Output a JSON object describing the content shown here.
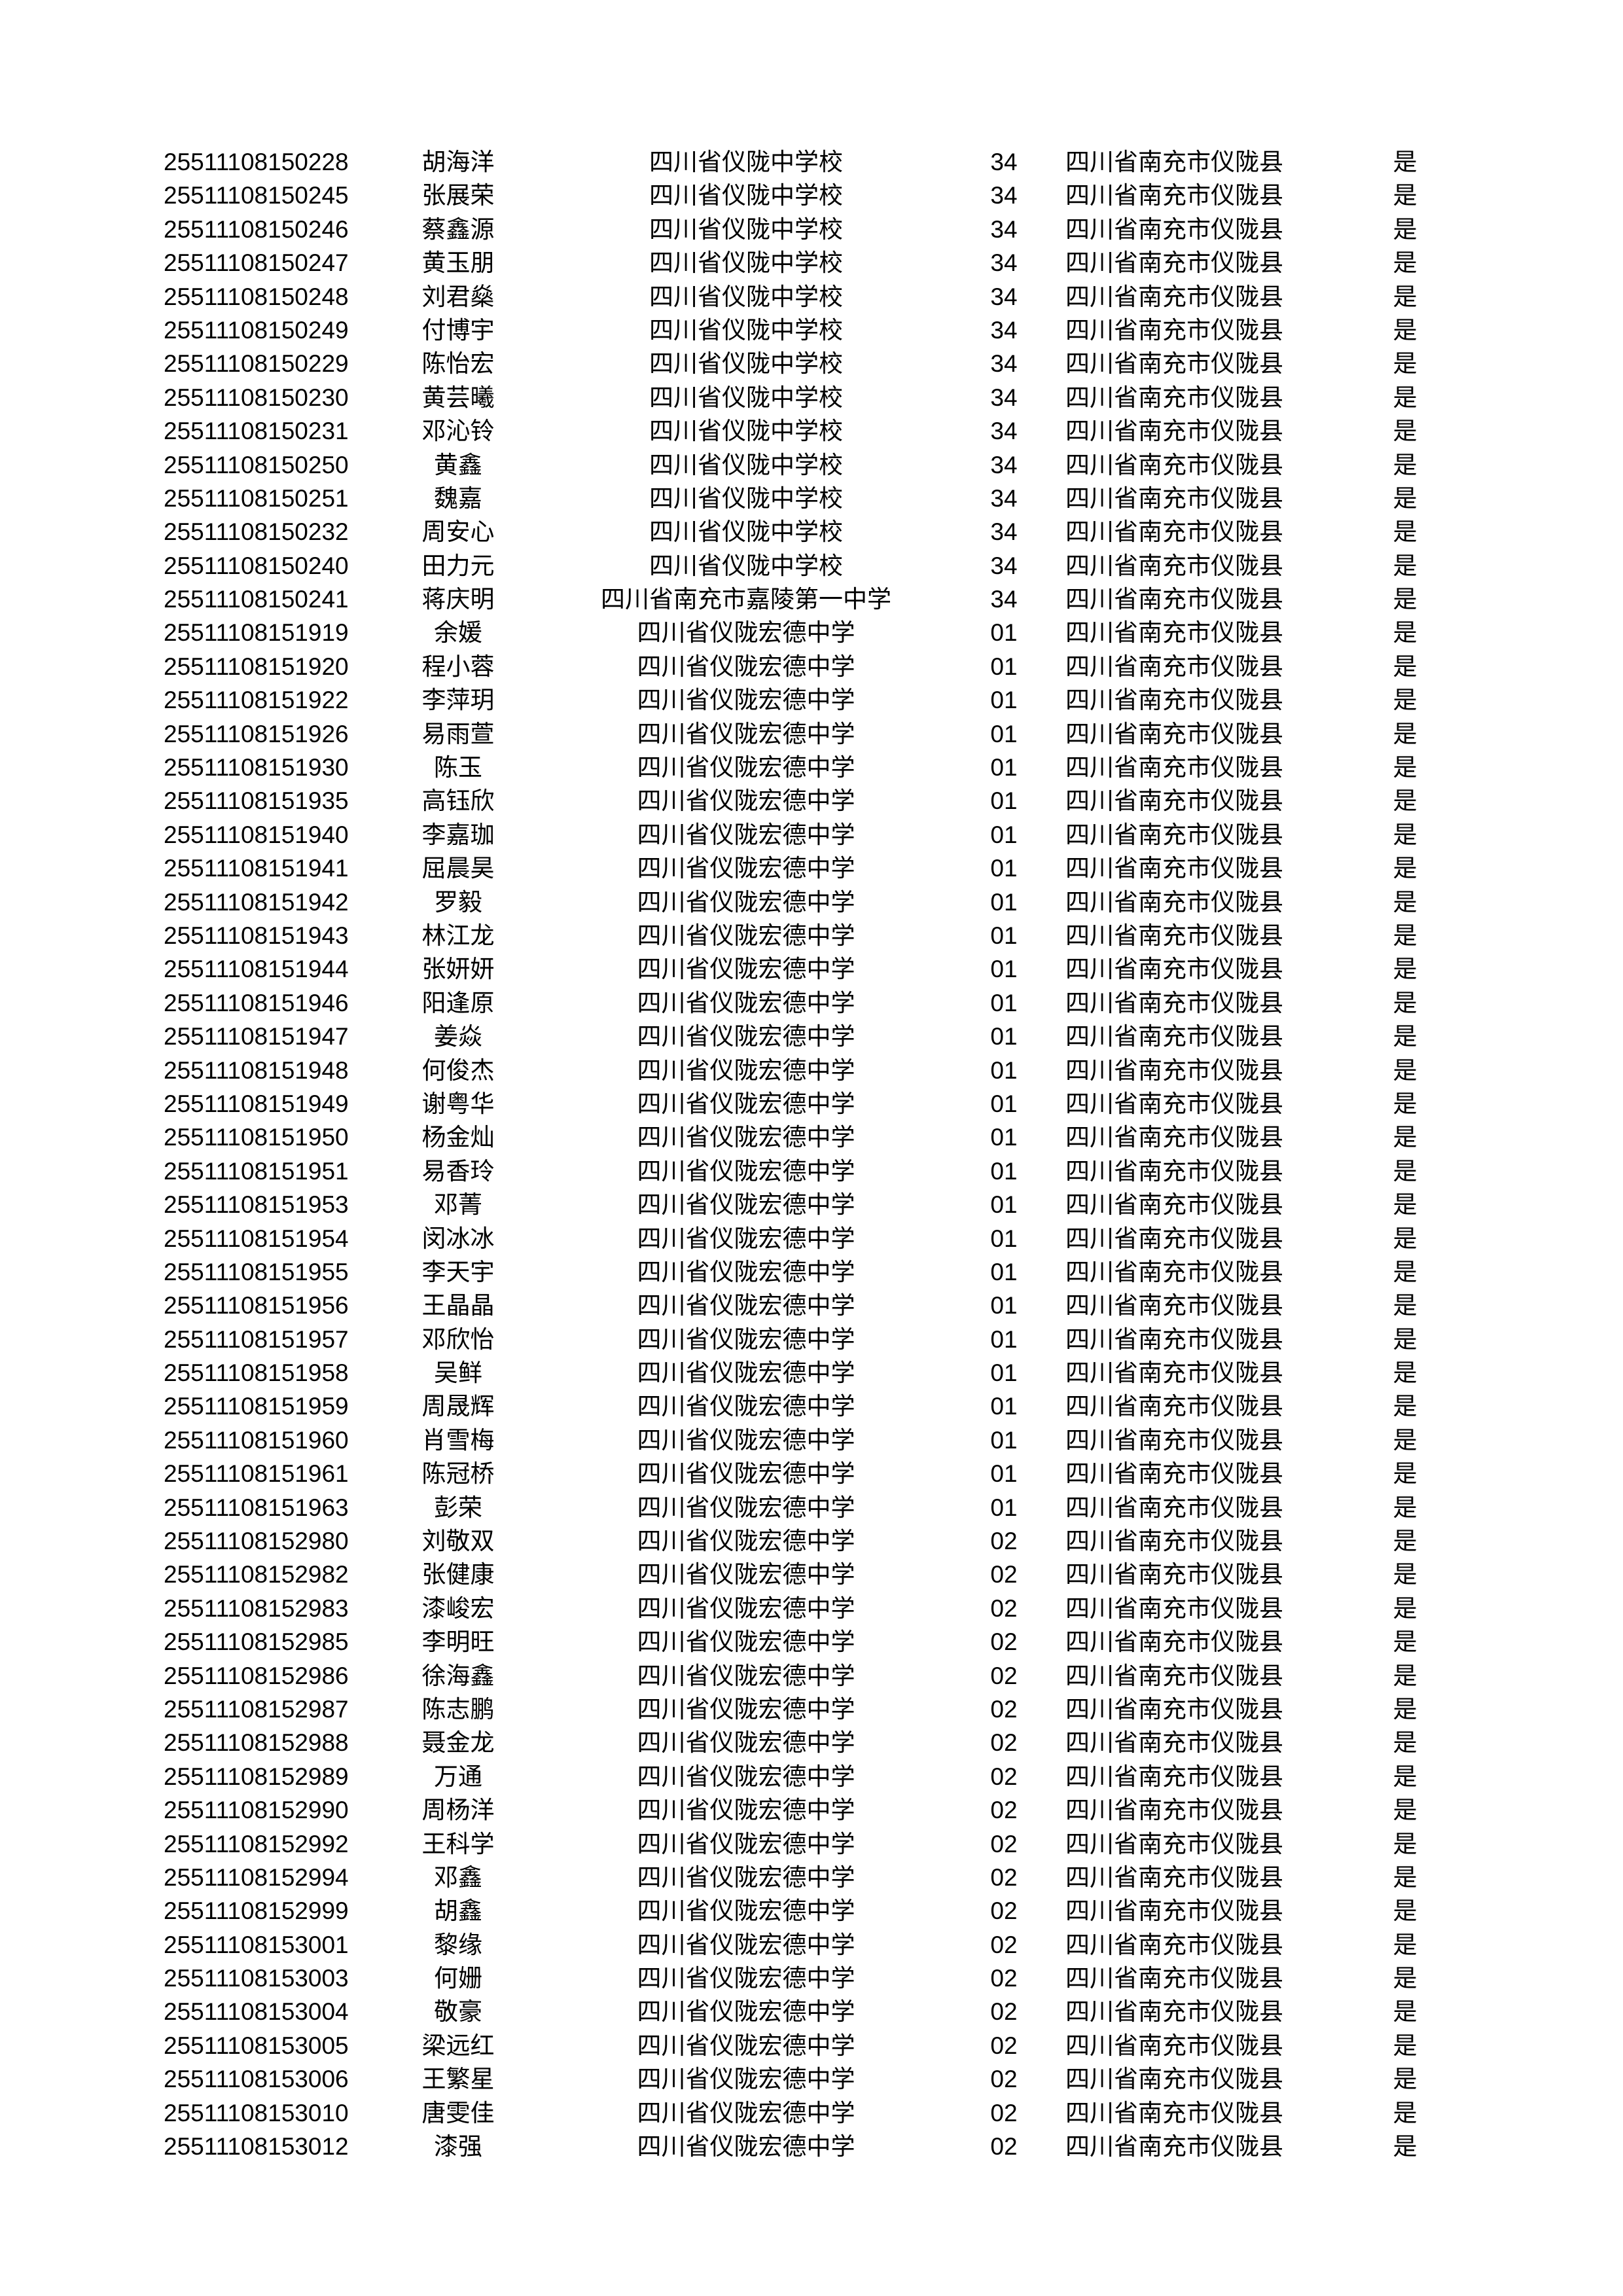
{
  "table": {
    "rows": [
      [
        "25511108150228",
        "胡海洋",
        "四川省仪陇中学校",
        "34",
        "四川省南充市仪陇县",
        "是"
      ],
      [
        "25511108150245",
        "张展荣",
        "四川省仪陇中学校",
        "34",
        "四川省南充市仪陇县",
        "是"
      ],
      [
        "25511108150246",
        "蔡鑫源",
        "四川省仪陇中学校",
        "34",
        "四川省南充市仪陇县",
        "是"
      ],
      [
        "25511108150247",
        "黄玉朋",
        "四川省仪陇中学校",
        "34",
        "四川省南充市仪陇县",
        "是"
      ],
      [
        "25511108150248",
        "刘君燊",
        "四川省仪陇中学校",
        "34",
        "四川省南充市仪陇县",
        "是"
      ],
      [
        "25511108150249",
        "付博宇",
        "四川省仪陇中学校",
        "34",
        "四川省南充市仪陇县",
        "是"
      ],
      [
        "25511108150229",
        "陈怡宏",
        "四川省仪陇中学校",
        "34",
        "四川省南充市仪陇县",
        "是"
      ],
      [
        "25511108150230",
        "黄芸曦",
        "四川省仪陇中学校",
        "34",
        "四川省南充市仪陇县",
        "是"
      ],
      [
        "25511108150231",
        "邓沁铃",
        "四川省仪陇中学校",
        "34",
        "四川省南充市仪陇县",
        "是"
      ],
      [
        "25511108150250",
        "黄鑫",
        "四川省仪陇中学校",
        "34",
        "四川省南充市仪陇县",
        "是"
      ],
      [
        "25511108150251",
        "魏嘉",
        "四川省仪陇中学校",
        "34",
        "四川省南充市仪陇县",
        "是"
      ],
      [
        "25511108150232",
        "周安心",
        "四川省仪陇中学校",
        "34",
        "四川省南充市仪陇县",
        "是"
      ],
      [
        "25511108150240",
        "田力元",
        "四川省仪陇中学校",
        "34",
        "四川省南充市仪陇县",
        "是"
      ],
      [
        "25511108150241",
        "蒋庆明",
        "四川省南充市嘉陵第一中学",
        "34",
        "四川省南充市仪陇县",
        "是"
      ],
      [
        "25511108151919",
        "余媛",
        "四川省仪陇宏德中学",
        "01",
        "四川省南充市仪陇县",
        "是"
      ],
      [
        "25511108151920",
        "程小蓉",
        "四川省仪陇宏德中学",
        "01",
        "四川省南充市仪陇县",
        "是"
      ],
      [
        "25511108151922",
        "李萍玥",
        "四川省仪陇宏德中学",
        "01",
        "四川省南充市仪陇县",
        "是"
      ],
      [
        "25511108151926",
        "易雨萱",
        "四川省仪陇宏德中学",
        "01",
        "四川省南充市仪陇县",
        "是"
      ],
      [
        "25511108151930",
        "陈玉",
        "四川省仪陇宏德中学",
        "01",
        "四川省南充市仪陇县",
        "是"
      ],
      [
        "25511108151935",
        "高钰欣",
        "四川省仪陇宏德中学",
        "01",
        "四川省南充市仪陇县",
        "是"
      ],
      [
        "25511108151940",
        "李嘉珈",
        "四川省仪陇宏德中学",
        "01",
        "四川省南充市仪陇县",
        "是"
      ],
      [
        "25511108151941",
        "屈晨昊",
        "四川省仪陇宏德中学",
        "01",
        "四川省南充市仪陇县",
        "是"
      ],
      [
        "25511108151942",
        "罗毅",
        "四川省仪陇宏德中学",
        "01",
        "四川省南充市仪陇县",
        "是"
      ],
      [
        "25511108151943",
        "林江龙",
        "四川省仪陇宏德中学",
        "01",
        "四川省南充市仪陇县",
        "是"
      ],
      [
        "25511108151944",
        "张妍妍",
        "四川省仪陇宏德中学",
        "01",
        "四川省南充市仪陇县",
        "是"
      ],
      [
        "25511108151946",
        "阳逢原",
        "四川省仪陇宏德中学",
        "01",
        "四川省南充市仪陇县",
        "是"
      ],
      [
        "25511108151947",
        "姜焱",
        "四川省仪陇宏德中学",
        "01",
        "四川省南充市仪陇县",
        "是"
      ],
      [
        "25511108151948",
        "何俊杰",
        "四川省仪陇宏德中学",
        "01",
        "四川省南充市仪陇县",
        "是"
      ],
      [
        "25511108151949",
        "谢粤华",
        "四川省仪陇宏德中学",
        "01",
        "四川省南充市仪陇县",
        "是"
      ],
      [
        "25511108151950",
        "杨金灿",
        "四川省仪陇宏德中学",
        "01",
        "四川省南充市仪陇县",
        "是"
      ],
      [
        "25511108151951",
        "易香玲",
        "四川省仪陇宏德中学",
        "01",
        "四川省南充市仪陇县",
        "是"
      ],
      [
        "25511108151953",
        "邓菁",
        "四川省仪陇宏德中学",
        "01",
        "四川省南充市仪陇县",
        "是"
      ],
      [
        "25511108151954",
        "闵冰冰",
        "四川省仪陇宏德中学",
        "01",
        "四川省南充市仪陇县",
        "是"
      ],
      [
        "25511108151955",
        "李天宇",
        "四川省仪陇宏德中学",
        "01",
        "四川省南充市仪陇县",
        "是"
      ],
      [
        "25511108151956",
        "王晶晶",
        "四川省仪陇宏德中学",
        "01",
        "四川省南充市仪陇县",
        "是"
      ],
      [
        "25511108151957",
        "邓欣怡",
        "四川省仪陇宏德中学",
        "01",
        "四川省南充市仪陇县",
        "是"
      ],
      [
        "25511108151958",
        "吴鲜",
        "四川省仪陇宏德中学",
        "01",
        "四川省南充市仪陇县",
        "是"
      ],
      [
        "25511108151959",
        "周晟辉",
        "四川省仪陇宏德中学",
        "01",
        "四川省南充市仪陇县",
        "是"
      ],
      [
        "25511108151960",
        "肖雪梅",
        "四川省仪陇宏德中学",
        "01",
        "四川省南充市仪陇县",
        "是"
      ],
      [
        "25511108151961",
        "陈冠桥",
        "四川省仪陇宏德中学",
        "01",
        "四川省南充市仪陇县",
        "是"
      ],
      [
        "25511108151963",
        "彭荣",
        "四川省仪陇宏德中学",
        "01",
        "四川省南充市仪陇县",
        "是"
      ],
      [
        "25511108152980",
        "刘敬双",
        "四川省仪陇宏德中学",
        "02",
        "四川省南充市仪陇县",
        "是"
      ],
      [
        "25511108152982",
        "张健康",
        "四川省仪陇宏德中学",
        "02",
        "四川省南充市仪陇县",
        "是"
      ],
      [
        "25511108152983",
        "漆峻宏",
        "四川省仪陇宏德中学",
        "02",
        "四川省南充市仪陇县",
        "是"
      ],
      [
        "25511108152985",
        "李明旺",
        "四川省仪陇宏德中学",
        "02",
        "四川省南充市仪陇县",
        "是"
      ],
      [
        "25511108152986",
        "徐海鑫",
        "四川省仪陇宏德中学",
        "02",
        "四川省南充市仪陇县",
        "是"
      ],
      [
        "25511108152987",
        "陈志鹏",
        "四川省仪陇宏德中学",
        "02",
        "四川省南充市仪陇县",
        "是"
      ],
      [
        "25511108152988",
        "聂金龙",
        "四川省仪陇宏德中学",
        "02",
        "四川省南充市仪陇县",
        "是"
      ],
      [
        "25511108152989",
        "万通",
        "四川省仪陇宏德中学",
        "02",
        "四川省南充市仪陇县",
        "是"
      ],
      [
        "25511108152990",
        "周杨洋",
        "四川省仪陇宏德中学",
        "02",
        "四川省南充市仪陇县",
        "是"
      ],
      [
        "25511108152992",
        "王科学",
        "四川省仪陇宏德中学",
        "02",
        "四川省南充市仪陇县",
        "是"
      ],
      [
        "25511108152994",
        "邓鑫",
        "四川省仪陇宏德中学",
        "02",
        "四川省南充市仪陇县",
        "是"
      ],
      [
        "25511108152999",
        "胡鑫",
        "四川省仪陇宏德中学",
        "02",
        "四川省南充市仪陇县",
        "是"
      ],
      [
        "25511108153001",
        "黎缘",
        "四川省仪陇宏德中学",
        "02",
        "四川省南充市仪陇县",
        "是"
      ],
      [
        "25511108153003",
        "何姗",
        "四川省仪陇宏德中学",
        "02",
        "四川省南充市仪陇县",
        "是"
      ],
      [
        "25511108153004",
        "敬豪",
        "四川省仪陇宏德中学",
        "02",
        "四川省南充市仪陇县",
        "是"
      ],
      [
        "25511108153005",
        "梁远红",
        "四川省仪陇宏德中学",
        "02",
        "四川省南充市仪陇县",
        "是"
      ],
      [
        "25511108153006",
        "王繁星",
        "四川省仪陇宏德中学",
        "02",
        "四川省南充市仪陇县",
        "是"
      ],
      [
        "25511108153010",
        "唐雯佳",
        "四川省仪陇宏德中学",
        "02",
        "四川省南充市仪陇县",
        "是"
      ],
      [
        "25511108153012",
        "漆强",
        "四川省仪陇宏德中学",
        "02",
        "四川省南充市仪陇县",
        "是"
      ]
    ]
  }
}
